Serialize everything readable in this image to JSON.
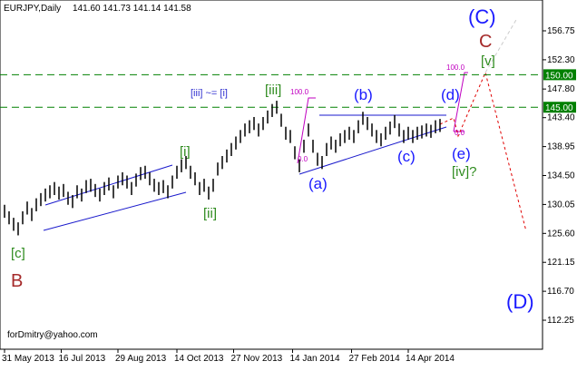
{
  "chart_data": {
    "type": "hilo",
    "title": "EURJPY,Daily",
    "ohlc_text": "141.60 141.73 141.14 141.58",
    "high": [
      130,
      129,
      128,
      127.3,
      129,
      130.5,
      129.5,
      131,
      131.8,
      132.5,
      133,
      133.5,
      132.8,
      133.2,
      132,
      131.5,
      133,
      132.5,
      133.8,
      134,
      133.2,
      132.5,
      133.5,
      134.2,
      133,
      134.5,
      135,
      134.5,
      133.5,
      134.8,
      135.8,
      136,
      135,
      134,
      133.5,
      133.8,
      133,
      134.5,
      136,
      137,
      137.5,
      136,
      135,
      133.5,
      134,
      132.8,
      134,
      136.5,
      137.5,
      138.5,
      139.5,
      140.5,
      141.5,
      142.5,
      143,
      143.5,
      142.5,
      143.5,
      144.5,
      145.5,
      146,
      144,
      142,
      141.5,
      139,
      137,
      140,
      142.5,
      140,
      138,
      137.5,
      139.5,
      140.5,
      140,
      141,
      141.5,
      142,
      141.5,
      143,
      144.3,
      143.5,
      142.5,
      141.5,
      141,
      142,
      142.8,
      143.8,
      142.5,
      141.5,
      142,
      141.5,
      142,
      142.2,
      142.5,
      142.3,
      143,
      143.2
    ],
    "low": [
      128,
      127,
      126,
      125.3,
      127,
      128.5,
      127.5,
      129,
      129.8,
      130.5,
      131,
      131.5,
      130.8,
      131.2,
      130,
      129.5,
      131,
      130.5,
      131.8,
      132,
      131.2,
      130.5,
      131.5,
      132.2,
      131,
      132.5,
      133,
      132.5,
      131.5,
      132.8,
      133.8,
      134,
      133,
      132,
      131.5,
      131.8,
      131,
      132.5,
      134,
      135,
      135.5,
      134,
      133,
      131.5,
      132,
      130.8,
      132,
      134.5,
      135.5,
      136.5,
      137.5,
      138.5,
      139.5,
      140.5,
      141,
      141.5,
      140.5,
      141.5,
      142.5,
      143.5,
      144,
      142,
      140,
      139.5,
      137,
      135,
      138,
      140.5,
      138,
      136,
      135.5,
      137.5,
      138.5,
      138,
      139,
      139.5,
      140,
      139.5,
      141,
      142.3,
      141.5,
      140.5,
      139.5,
      139,
      140,
      140.8,
      141.8,
      140.5,
      139.5,
      140,
      139.5,
      140,
      140.2,
      140.5,
      140.3,
      141,
      141.2
    ],
    "color": "#000000",
    "ylim": [
      107.79,
      161.49
    ],
    "yticks": [
      {
        "value": 156.75,
        "label": "156.75"
      },
      {
        "value": 152.3,
        "label": "152.30"
      },
      {
        "value": 147.8,
        "label": "147.80"
      },
      {
        "value": 143.4,
        "label": "143.40"
      },
      {
        "value": 138.95,
        "label": "138.95"
      },
      {
        "value": 134.5,
        "label": "134.50"
      },
      {
        "value": 130.05,
        "label": "130.05"
      },
      {
        "value": 125.6,
        "label": "125.60"
      },
      {
        "value": 121.15,
        "label": "121.15"
      },
      {
        "value": 116.7,
        "label": "116.70"
      },
      {
        "value": 112.25,
        "label": "112.25"
      }
    ],
    "xticks": [
      {
        "value": 0,
        "label": "31 May 2013"
      },
      {
        "value": 12.5,
        "label": "16 Jul 2013"
      },
      {
        "value": 25,
        "label": "29 Aug 2013"
      },
      {
        "value": 38,
        "label": "14 Oct 2013"
      },
      {
        "value": 50.5,
        "label": "27 Nov 2013"
      },
      {
        "value": 63.5,
        "label": "14 Jan 2014"
      },
      {
        "value": 76.5,
        "label": "27 Feb 2014"
      },
      {
        "value": 89,
        "label": "14 Apr 2014"
      }
    ],
    "levels": [
      {
        "value": 150,
        "label": "150.00"
      },
      {
        "value": 145,
        "label": "145.00"
      }
    ],
    "level_color": "#008000",
    "annotations": [
      "(C)",
      "C",
      "[v]",
      "(d)",
      "(b)",
      "[iii] ~= [i]",
      "[iii]",
      "100.0",
      "100.0",
      "0.0",
      "0.0",
      "(a)",
      "(c)",
      "(e)",
      "[iv]?",
      "[i]",
      "[ii]",
      "[c]",
      "B",
      "(D)"
    ],
    "footer": "forDmitry@yahoo.com"
  }
}
